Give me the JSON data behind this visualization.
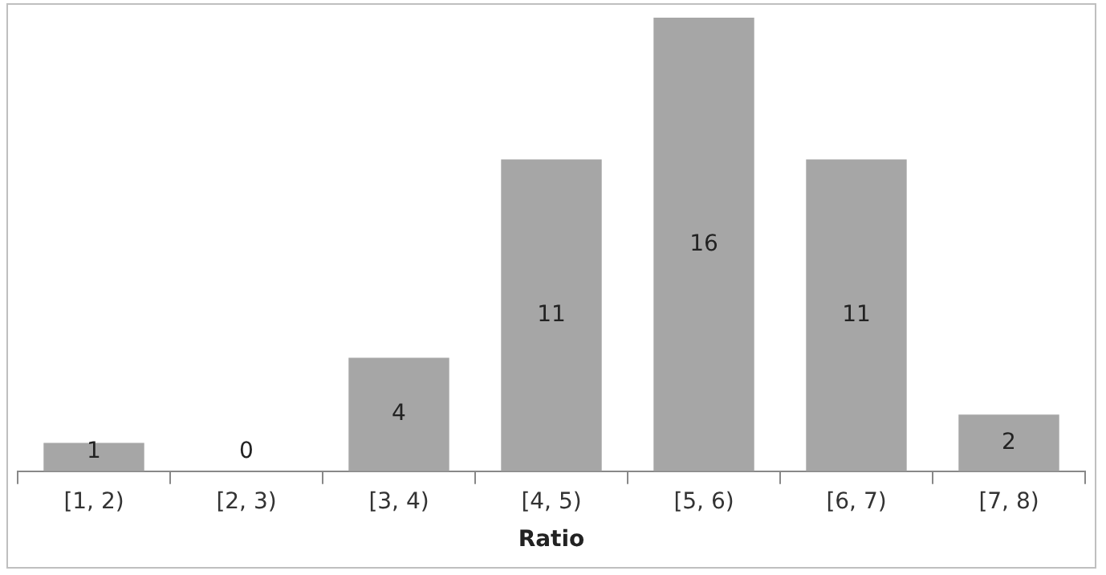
{
  "chart_data": {
    "type": "bar",
    "xlabel": "Ratio",
    "categories": [
      "[1, 2)",
      "[2, 3)",
      "[3, 4)",
      "[4, 5)",
      "[5, 6)",
      "[6, 7)",
      "[7, 8)"
    ],
    "values": [
      1,
      0,
      4,
      11,
      16,
      11,
      2
    ],
    "color": "#a6a6a6",
    "data_labels": true,
    "tick_labels": "x",
    "grid": false,
    "legend": false
  }
}
